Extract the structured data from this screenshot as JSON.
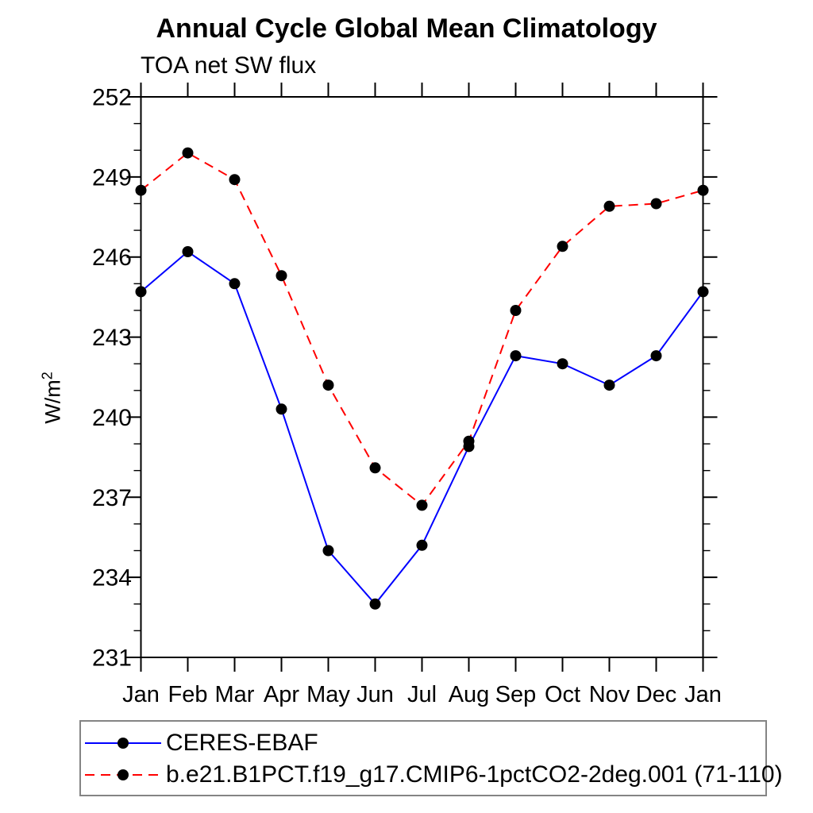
{
  "chart_data": {
    "type": "line",
    "title": "Annual Cycle Global Mean Climatology",
    "subtitle": "TOA net SW flux",
    "ylabel": {
      "base": "W/m",
      "sup": "2"
    },
    "x_categories": [
      "Jan",
      "Feb",
      "Mar",
      "Apr",
      "May",
      "Jun",
      "Jul",
      "Aug",
      "Sep",
      "Oct",
      "Nov",
      "Dec",
      "Jan"
    ],
    "ylim": [
      231,
      252
    ],
    "ytick_major_interval": 3,
    "ytick_minor_interval": 1,
    "ytick_major_labels": [
      "231",
      "234",
      "237",
      "240",
      "243",
      "246",
      "249",
      "252"
    ],
    "grid": false,
    "legend_position": "bottom-left-box",
    "marker": "filled-circle",
    "marker_color": "#000000",
    "series": [
      {
        "name": "CERES-EBAF",
        "color": "#0000ff",
        "line_style": "solid",
        "values": [
          244.7,
          246.2,
          245.0,
          240.3,
          235.0,
          233.0,
          235.2,
          238.9,
          242.3,
          242.0,
          241.2,
          242.3,
          244.7
        ]
      },
      {
        "name": "b.e21.B1PCT.f19_g17.CMIP6-1pctCO2-2deg.001 (71-110)",
        "color": "#ff0000",
        "line_style": "dashed",
        "values": [
          248.5,
          249.9,
          248.9,
          245.3,
          241.2,
          238.1,
          236.7,
          239.1,
          244.0,
          246.4,
          247.9,
          248.0,
          248.5
        ]
      }
    ],
    "styles": {
      "axis_color": "#000000",
      "text_color": "#000000",
      "legend_border_color": "#848484",
      "background": "#ffffff"
    }
  }
}
